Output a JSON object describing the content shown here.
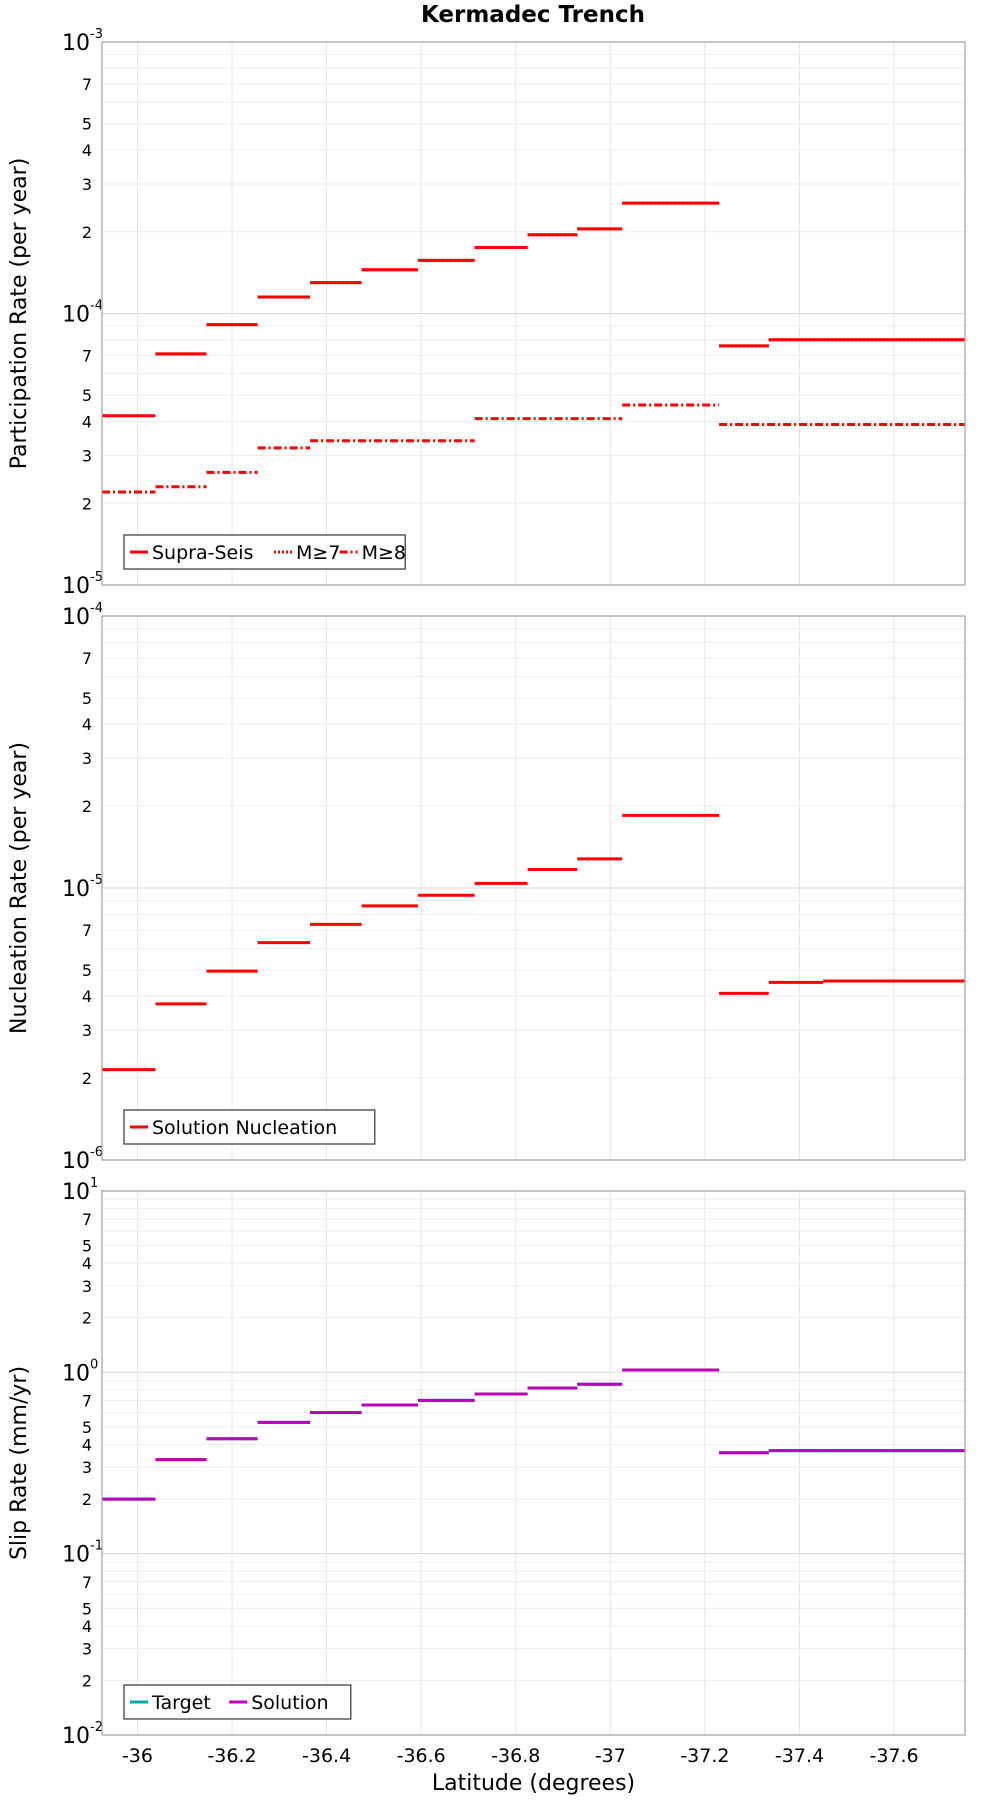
{
  "figure_title": "Kermadec Trench",
  "chart_data": [
    {
      "type": "line",
      "ylabel": "Participation Rate (per year)",
      "yscale": "log",
      "ylim": [
        1e-05,
        0.001
      ],
      "xlim": [
        -35.925,
        -37.75
      ],
      "grid": true,
      "legend_position": "bottom-left",
      "series": [
        {
          "name": "Supra-Seis",
          "color": "#ff0000",
          "style": "solid",
          "segments": [
            [
              -35.925,
              -36.038,
              4.2e-05
            ],
            [
              -36.038,
              -36.146,
              7.1e-05
            ],
            [
              -36.146,
              -36.254,
              9.1e-05
            ],
            [
              -36.254,
              -36.365,
              0.000115
            ],
            [
              -36.365,
              -36.474,
              0.00013
            ],
            [
              -36.474,
              -36.593,
              0.000145
            ],
            [
              -36.593,
              -36.713,
              0.000157
            ],
            [
              -36.713,
              -36.825,
              0.000175
            ],
            [
              -36.825,
              -36.93,
              0.000195
            ],
            [
              -36.93,
              -37.025,
              0.000205
            ],
            [
              -37.025,
              -37.23,
              0.000255
            ],
            [
              -37.23,
              -37.335,
              7.6e-05
            ],
            [
              -37.335,
              -37.45,
              8e-05
            ],
            [
              -37.45,
              -37.75,
              8e-05
            ]
          ]
        },
        {
          "name": "M≥7",
          "color": "#ff0000",
          "style": "dotted",
          "segments": [
            [
              -36.038,
              -36.146,
              7.1e-05
            ],
            [
              -36.146,
              -36.254,
              9.1e-05
            ],
            [
              -36.254,
              -36.365,
              0.000115
            ],
            [
              -36.365,
              -36.474,
              0.00013
            ],
            [
              -36.474,
              -36.593,
              0.000145
            ],
            [
              -36.593,
              -36.713,
              0.000157
            ],
            [
              -36.713,
              -36.825,
              0.000175
            ],
            [
              -36.825,
              -36.93,
              0.000195
            ],
            [
              -36.93,
              -37.025,
              0.000205
            ],
            [
              -37.025,
              -37.23,
              0.000255
            ],
            [
              -37.23,
              -37.335,
              7.6e-05
            ],
            [
              -37.335,
              -37.45,
              8e-05
            ],
            [
              -37.45,
              -37.75,
              8e-05
            ]
          ]
        },
        {
          "name": "M≥8",
          "color": "#ff0000",
          "style": "dashdot",
          "segments": [
            [
              -35.925,
              -36.038,
              2.2e-05
            ],
            [
              -36.038,
              -36.146,
              2.3e-05
            ],
            [
              -36.146,
              -36.254,
              2.6e-05
            ],
            [
              -36.254,
              -36.365,
              3.2e-05
            ],
            [
              -36.365,
              -36.713,
              3.4e-05
            ],
            [
              -36.713,
              -37.025,
              4.1e-05
            ],
            [
              -37.025,
              -37.23,
              4.6e-05
            ],
            [
              -37.23,
              -37.75,
              3.9e-05
            ]
          ]
        }
      ]
    },
    {
      "type": "line",
      "ylabel": "Nucleation Rate (per year)",
      "yscale": "log",
      "ylim": [
        1e-06,
        0.0001
      ],
      "xlim": [
        -35.925,
        -37.75
      ],
      "grid": true,
      "legend_position": "bottom-left",
      "series": [
        {
          "name": "Solution Nucleation",
          "color": "#ff0000",
          "style": "solid",
          "segments": [
            [
              -35.925,
              -36.038,
              2.15e-06
            ],
            [
              -36.038,
              -36.146,
              3.75e-06
            ],
            [
              -36.146,
              -36.254,
              4.95e-06
            ],
            [
              -36.254,
              -36.365,
              6.3e-06
            ],
            [
              -36.365,
              -36.474,
              7.35e-06
            ],
            [
              -36.474,
              -36.593,
              8.6e-06
            ],
            [
              -36.593,
              -36.713,
              9.4e-06
            ],
            [
              -36.713,
              -36.825,
              1.04e-05
            ],
            [
              -36.825,
              -36.93,
              1.17e-05
            ],
            [
              -36.93,
              -37.025,
              1.28e-05
            ],
            [
              -37.025,
              -37.23,
              1.85e-05
            ],
            [
              -37.23,
              -37.335,
              4.1e-06
            ],
            [
              -37.335,
              -37.45,
              4.5e-06
            ],
            [
              -37.45,
              -37.75,
              4.55e-06
            ]
          ]
        }
      ]
    },
    {
      "type": "line",
      "ylabel": "Slip Rate (mm/yr)",
      "xlabel": "Latitude (degrees)",
      "yscale": "log",
      "ylim": [
        0.01,
        10
      ],
      "xlim": [
        -35.925,
        -37.75
      ],
      "grid": true,
      "legend_position": "bottom-left",
      "x_ticks": [
        -36,
        -36.2,
        -36.4,
        -36.6,
        -36.8,
        -37,
        -37.2,
        -37.4,
        -37.6
      ],
      "x_tick_labels": [
        "-36",
        "-36.2",
        "-36.4",
        "-36.6",
        "-36.8",
        "-37",
        "-37.2",
        "-37.4",
        "-37.6"
      ],
      "series": [
        {
          "name": "Target",
          "color": "#00aaaa",
          "style": "solid",
          "segments": [
            [
              -35.925,
              -36.038,
              0.2
            ],
            [
              -36.038,
              -36.146,
              0.33
            ],
            [
              -36.146,
              -36.254,
              0.43
            ],
            [
              -36.254,
              -36.365,
              0.53
            ],
            [
              -36.365,
              -36.474,
              0.6
            ],
            [
              -36.474,
              -36.593,
              0.66
            ],
            [
              -36.593,
              -36.713,
              0.7
            ],
            [
              -36.713,
              -36.825,
              0.76
            ],
            [
              -36.825,
              -36.93,
              0.82
            ],
            [
              -36.93,
              -37.025,
              0.86
            ],
            [
              -37.025,
              -37.23,
              1.03
            ],
            [
              -37.23,
              -37.335,
              0.36
            ],
            [
              -37.335,
              -37.45,
              0.37
            ],
            [
              -37.45,
              -37.75,
              0.37
            ]
          ]
        },
        {
          "name": "Solution",
          "color": "#bb00bb",
          "style": "solid",
          "segments": [
            [
              -35.925,
              -36.038,
              0.2
            ],
            [
              -36.038,
              -36.146,
              0.33
            ],
            [
              -36.146,
              -36.254,
              0.43
            ],
            [
              -36.254,
              -36.365,
              0.53
            ],
            [
              -36.365,
              -36.474,
              0.6
            ],
            [
              -36.474,
              -36.593,
              0.66
            ],
            [
              -36.593,
              -36.713,
              0.7
            ],
            [
              -36.713,
              -36.825,
              0.76
            ],
            [
              -36.825,
              -36.93,
              0.82
            ],
            [
              -36.93,
              -37.025,
              0.86
            ],
            [
              -37.025,
              -37.23,
              1.03
            ],
            [
              -37.23,
              -37.335,
              0.36
            ],
            [
              -37.335,
              -37.45,
              0.37
            ],
            [
              -37.45,
              -37.75,
              0.37
            ]
          ]
        }
      ]
    }
  ]
}
